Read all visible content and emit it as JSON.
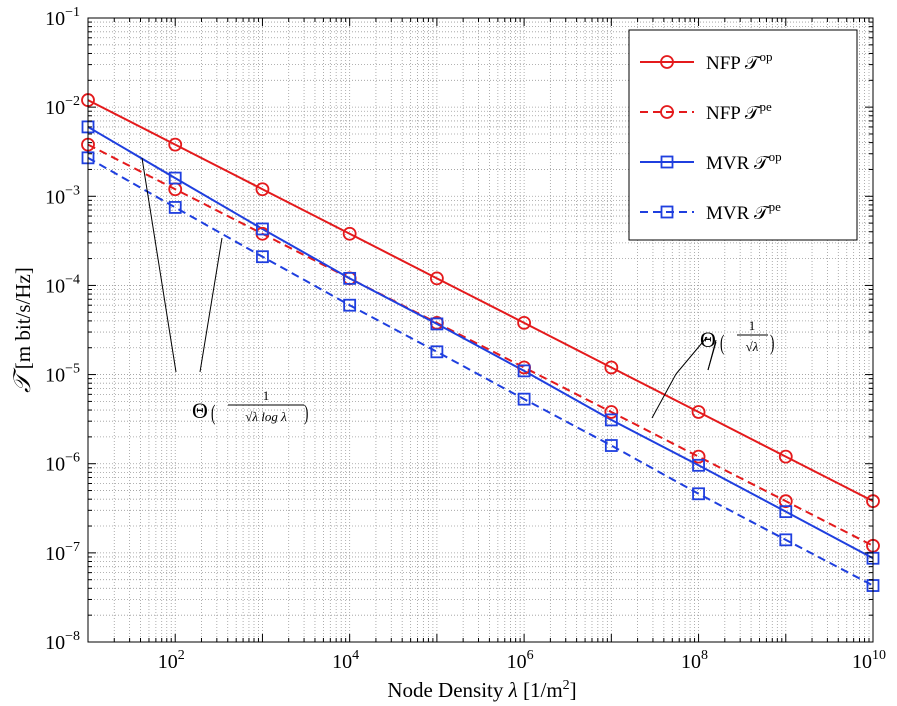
{
  "chart_data": {
    "type": "line",
    "xscale": "log",
    "yscale": "log",
    "xlim": [
      10,
      10000000000
    ],
    "ylim": [
      1e-08,
      0.1
    ],
    "grid": true,
    "legend_position": "top-right",
    "xlabel": {
      "prefix": "Node Density ",
      "symbol": "λ",
      "units": " [1/m",
      "unit_sup": "2",
      "close": "]"
    },
    "ylabel": {
      "symbol": "𝒯",
      "units": " [m bit/s/Hz]"
    },
    "x_ticks": [
      {
        "value": 100,
        "base": "10",
        "exp": "2"
      },
      {
        "value": 10000,
        "base": "10",
        "exp": "4"
      },
      {
        "value": 1000000,
        "base": "10",
        "exp": "6"
      },
      {
        "value": 100000000,
        "base": "10",
        "exp": "8"
      },
      {
        "value": 10000000000,
        "base": "10",
        "exp": "10"
      }
    ],
    "y_ticks": [
      {
        "value": 0.1,
        "base": "10",
        "exp": "−1"
      },
      {
        "value": 0.01,
        "base": "10",
        "exp": "−2"
      },
      {
        "value": 0.001,
        "base": "10",
        "exp": "−3"
      },
      {
        "value": 0.0001,
        "base": "10",
        "exp": "−4"
      },
      {
        "value": 1e-05,
        "base": "10",
        "exp": "−5"
      },
      {
        "value": 1e-06,
        "base": "10",
        "exp": "−6"
      },
      {
        "value": 1e-07,
        "base": "10",
        "exp": "−7"
      },
      {
        "value": 1e-08,
        "base": "10",
        "exp": "−8"
      }
    ],
    "x": [
      10,
      100,
      1000,
      10000,
      100000,
      1000000,
      10000000,
      100000000,
      1000000000,
      10000000000
    ],
    "series": [
      {
        "name": "NFP 𝒯",
        "sup": "op",
        "color": "#e41a1c",
        "style": "solid",
        "marker": "circle",
        "values": [
          0.012,
          0.0038,
          0.0012,
          0.00038,
          0.00012,
          3.8e-05,
          1.2e-05,
          3.8e-06,
          1.2e-06,
          3.8e-07
        ]
      },
      {
        "name": "NFP 𝒯",
        "sup": "pe",
        "color": "#e41a1c",
        "style": "dashed",
        "marker": "circle",
        "values": [
          0.0038,
          0.0012,
          0.00038,
          0.00012,
          3.8e-05,
          1.2e-05,
          3.8e-06,
          1.2e-06,
          3.8e-07,
          1.2e-07
        ]
      },
      {
        "name": "MVR 𝒯",
        "sup": "op",
        "color": "#1f3fdf",
        "style": "solid",
        "marker": "square",
        "values": [
          0.006,
          0.0016,
          0.00043,
          0.00012,
          3.7e-05,
          1.1e-05,
          3.1e-06,
          9.6e-07,
          2.9e-07,
          8.7e-08
        ]
      },
      {
        "name": "MVR 𝒯",
        "sup": "pe",
        "color": "#1f3fdf",
        "style": "dashed",
        "marker": "square",
        "values": [
          0.0027,
          0.00075,
          0.00021,
          6e-05,
          1.8e-05,
          5.3e-06,
          1.6e-06,
          4.6e-07,
          1.4e-07,
          4.3e-08
        ]
      }
    ],
    "annotations": [
      {
        "id": "theta-sqrt-log",
        "prefix": "Θ",
        "numerator": "1",
        "denominator": "√λ log λ"
      },
      {
        "id": "theta-sqrt",
        "prefix": "Θ",
        "numerator": "1",
        "denominator": "√λ"
      }
    ]
  }
}
